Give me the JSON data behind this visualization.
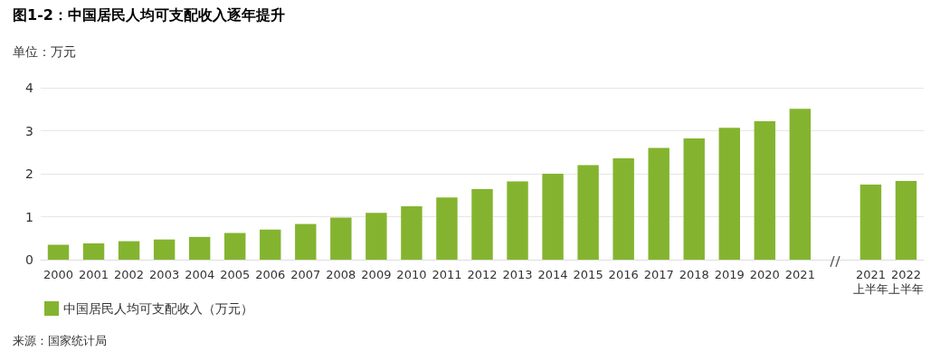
{
  "chart_data": {
    "type": "bar",
    "title": "图1-2：中国居民人均可支配收入逐年提升",
    "ylabel": "单位：万元",
    "categories": [
      "2000",
      "2001",
      "2002",
      "2003",
      "2004",
      "2005",
      "2006",
      "2007",
      "2008",
      "2009",
      "2010",
      "2011",
      "2012",
      "2013",
      "2014",
      "2015",
      "2016",
      "2017",
      "2018",
      "2019",
      "2020",
      "2021",
      null,
      "2021\n上半年",
      "2022\n上半年"
    ],
    "series": [
      {
        "name": "中国居民人均可支配收入（万元）",
        "color": "#84b42f",
        "values": [
          0.35,
          0.38,
          0.43,
          0.47,
          0.53,
          0.62,
          0.7,
          0.83,
          0.98,
          1.09,
          1.24,
          1.45,
          1.64,
          1.82,
          2.0,
          2.2,
          2.36,
          2.6,
          2.82,
          3.07,
          3.22,
          3.51,
          null,
          1.75,
          1.83
        ]
      }
    ],
    "ylim": [
      0,
      4
    ],
    "yticks": [
      0,
      1,
      2,
      3,
      4
    ],
    "grid": "y",
    "legend": "bottom left",
    "annotations": [
      "来源：国家统计局"
    ]
  }
}
